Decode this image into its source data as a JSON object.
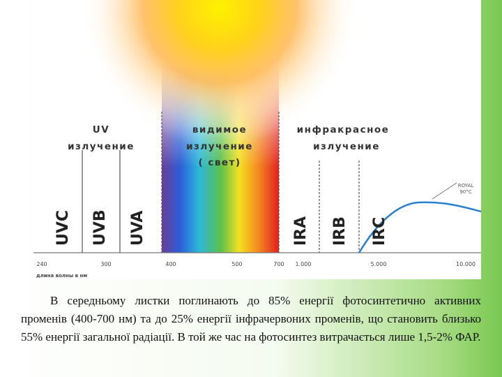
{
  "diagram": {
    "regions": [
      {
        "title": "UV",
        "subtitle": "излучение"
      },
      {
        "title": "видимое",
        "subtitle": "излучение",
        "note": "( свет)"
      },
      {
        "title": "инфракрасное",
        "subtitle": "излучение"
      }
    ],
    "bands": [
      "UVC",
      "UVB",
      "UVA",
      "IRA",
      "IRB",
      "IRC"
    ],
    "curve_label": [
      "ROYAL",
      "90°C"
    ],
    "axis": {
      "ticks": [
        "240",
        "300",
        "400",
        "500",
        "700",
        "1.000",
        "5.000",
        "10.000"
      ],
      "label": "длина волны в нм"
    }
  },
  "paragraph": "В середньому листки поглинають до 85% енергії фотосинтетично активних променів (400-700 нм) та до 25% енергії інфрачервоних променів, що становить близько 55% енергії загальної радіації. В той же час на фотосинтез витрачається лише 1,5-2% ФАР."
}
